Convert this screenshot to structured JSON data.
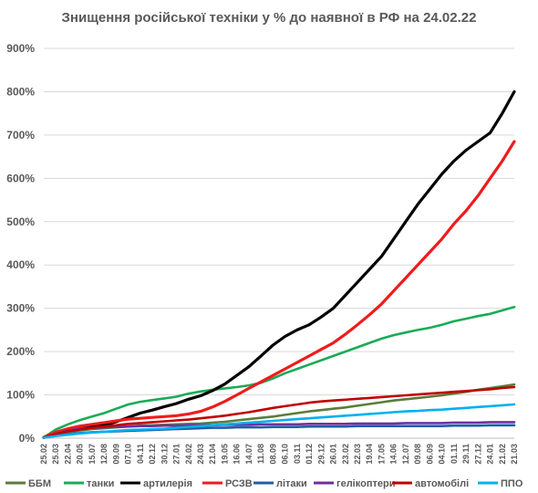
{
  "chart_data": {
    "type": "line",
    "title": "Знищення російської техніки у % до наявної в РФ на 24.02.22",
    "xlabel": "",
    "ylabel": "",
    "ylim": [
      0,
      900
    ],
    "y_ticks": [
      "0%",
      "100%",
      "200%",
      "300%",
      "400%",
      "500%",
      "600%",
      "700%",
      "800%",
      "900%"
    ],
    "grid": true,
    "legend_position": "bottom",
    "x": [
      "25.02",
      "25.03",
      "22.04",
      "20.05",
      "15.07",
      "12.08",
      "09.09",
      "07.10",
      "04.11",
      "02.12",
      "30.12",
      "27.01",
      "24.02",
      "24.03",
      "21.04",
      "19.05",
      "16.06",
      "14.07",
      "11.08",
      "08.09",
      "06.10",
      "03.11",
      "01.12",
      "29.12",
      "26.01",
      "23.02",
      "22.03",
      "19.04",
      "17.05",
      "14.06",
      "12.07",
      "09.08",
      "06.09",
      "04.10",
      "01.11",
      "29.11",
      "27.12",
      "24.01",
      "21.02",
      "21.03"
    ],
    "series": [
      {
        "name": "ББМ",
        "color": "#5a7d3a",
        "values": [
          2,
          8,
          14,
          18,
          21,
          23,
          25,
          27,
          29,
          30,
          31,
          32,
          33,
          34,
          36,
          38,
          41,
          44,
          47,
          50,
          54,
          58,
          62,
          65,
          68,
          71,
          75,
          79,
          83,
          87,
          90,
          93,
          96,
          99,
          103,
          107,
          112,
          116,
          120,
          124
        ]
      },
      {
        "name": "танки",
        "color": "#1aab56",
        "values": [
          2,
          20,
          32,
          42,
          50,
          58,
          68,
          78,
          84,
          88,
          92,
          96,
          103,
          108,
          112,
          115,
          118,
          122,
          128,
          138,
          150,
          160,
          170,
          180,
          190,
          200,
          210,
          220,
          230,
          238,
          244,
          250,
          255,
          262,
          270,
          276,
          282,
          287,
          295,
          303
        ]
      },
      {
        "name": "артилерія",
        "color": "#000000",
        "values": [
          2,
          12,
          18,
          22,
          26,
          30,
          38,
          48,
          58,
          65,
          73,
          80,
          90,
          98,
          110,
          125,
          145,
          165,
          190,
          215,
          235,
          250,
          262,
          280,
          300,
          330,
          360,
          390,
          420,
          460,
          500,
          540,
          575,
          610,
          640,
          665,
          685,
          705,
          750,
          800
        ]
      },
      {
        "name": "РСЗВ",
        "color": "#ee1c1c",
        "values": [
          2,
          14,
          22,
          28,
          32,
          36,
          40,
          44,
          46,
          48,
          50,
          52,
          56,
          62,
          72,
          85,
          100,
          115,
          130,
          145,
          160,
          175,
          190,
          205,
          220,
          240,
          262,
          285,
          310,
          340,
          370,
          400,
          430,
          460,
          495,
          525,
          560,
          600,
          640,
          685
        ]
      },
      {
        "name": "літаки",
        "color": "#1f5fa8",
        "values": [
          1,
          6,
          10,
          12,
          14,
          15,
          16,
          17,
          18,
          19,
          20,
          21,
          22,
          23,
          24,
          24,
          25,
          25,
          25,
          26,
          26,
          26,
          27,
          27,
          27,
          27,
          28,
          28,
          28,
          28,
          28,
          28,
          28,
          28,
          29,
          29,
          29,
          30,
          30,
          30
        ]
      },
      {
        "name": "гелікоптери",
        "color": "#7030a0",
        "values": [
          1,
          10,
          18,
          22,
          24,
          25,
          26,
          27,
          28,
          28,
          29,
          29,
          30,
          30,
          30,
          31,
          31,
          31,
          32,
          32,
          32,
          32,
          33,
          33,
          33,
          33,
          34,
          34,
          34,
          34,
          35,
          35,
          35,
          35,
          36,
          36,
          36,
          37,
          37,
          37
        ]
      },
      {
        "name": "автомобілі",
        "color": "#c00000",
        "values": [
          1,
          10,
          16,
          20,
          24,
          27,
          30,
          33,
          35,
          37,
          39,
          41,
          43,
          46,
          49,
          52,
          56,
          60,
          65,
          70,
          74,
          78,
          82,
          85,
          87,
          89,
          91,
          93,
          95,
          97,
          99,
          101,
          103,
          105,
          107,
          109,
          111,
          113,
          116,
          118
        ]
      },
      {
        "name": "ППО",
        "color": "#00b0f0",
        "values": [
          1,
          5,
          8,
          11,
          13,
          15,
          17,
          19,
          20,
          21,
          22,
          24,
          26,
          28,
          30,
          32,
          34,
          36,
          38,
          40,
          42,
          44,
          46,
          48,
          50,
          52,
          54,
          56,
          58,
          60,
          62,
          63,
          65,
          66,
          68,
          70,
          72,
          74,
          76,
          78
        ]
      }
    ]
  }
}
